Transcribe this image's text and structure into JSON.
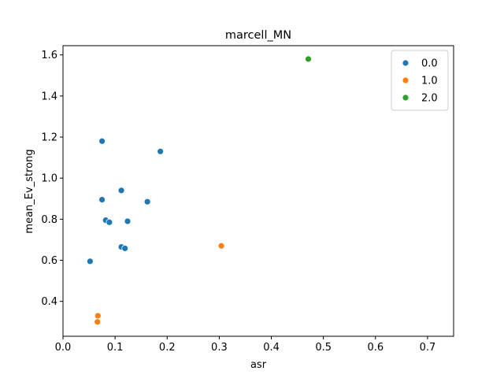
{
  "chart_data": {
    "type": "scatter",
    "title": "marcell_MN",
    "xlabel": "asr",
    "ylabel": "mean_Ev_strong",
    "xlim": [
      0.0,
      0.75
    ],
    "ylim": [
      0.23,
      1.645
    ],
    "xticks": [
      0.0,
      0.1,
      0.2,
      0.3,
      0.4,
      0.5,
      0.6,
      0.7
    ],
    "xtick_labels": [
      "0.0",
      "0.1",
      "0.2",
      "0.3",
      "0.4",
      "0.5",
      "0.6",
      "0.7"
    ],
    "yticks": [
      0.4,
      0.6,
      0.8,
      1.0,
      1.2,
      1.4,
      1.6
    ],
    "ytick_labels": [
      "0.4",
      "0.6",
      "0.8",
      "1.0",
      "1.2",
      "1.4",
      "1.6"
    ],
    "grid": false,
    "legend_position": "top-right",
    "series": [
      {
        "name": "0.0",
        "color": "#1f77b4",
        "points": [
          {
            "x": 0.075,
            "y": 1.18
          },
          {
            "x": 0.187,
            "y": 1.13
          },
          {
            "x": 0.112,
            "y": 0.94
          },
          {
            "x": 0.075,
            "y": 0.895
          },
          {
            "x": 0.162,
            "y": 0.885
          },
          {
            "x": 0.082,
            "y": 0.795
          },
          {
            "x": 0.089,
            "y": 0.785
          },
          {
            "x": 0.124,
            "y": 0.79
          },
          {
            "x": 0.112,
            "y": 0.665
          },
          {
            "x": 0.119,
            "y": 0.658
          },
          {
            "x": 0.052,
            "y": 0.595
          }
        ]
      },
      {
        "name": "1.0",
        "color": "#ff7f0e",
        "points": [
          {
            "x": 0.304,
            "y": 0.67
          },
          {
            "x": 0.067,
            "y": 0.33
          },
          {
            "x": 0.066,
            "y": 0.3
          }
        ]
      },
      {
        "name": "2.0",
        "color": "#2ca02c",
        "points": [
          {
            "x": 0.471,
            "y": 1.58
          }
        ]
      }
    ]
  }
}
